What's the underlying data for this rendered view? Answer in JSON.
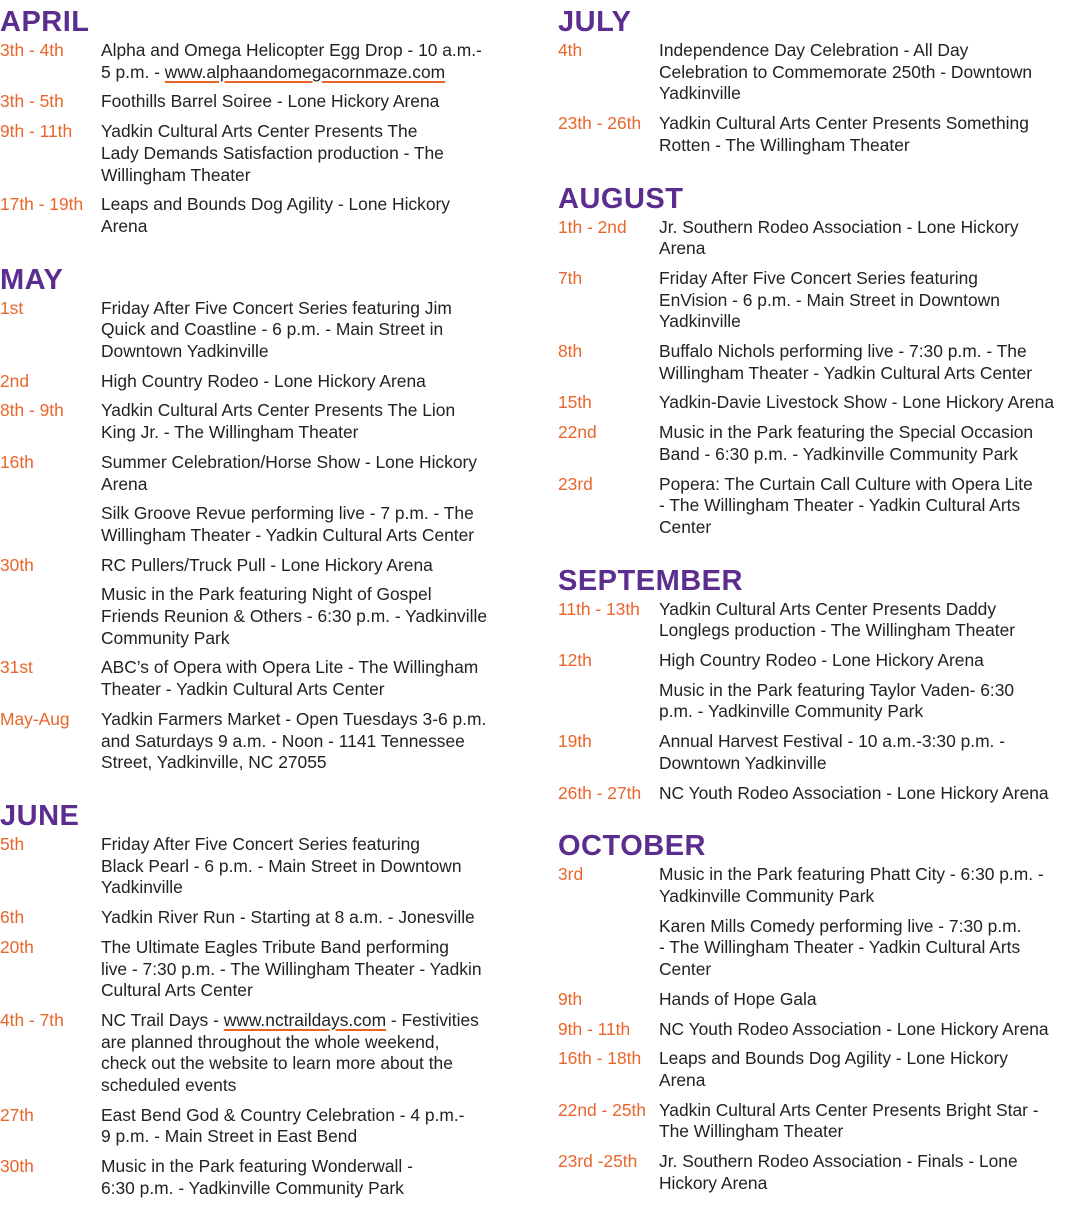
{
  "colors": {
    "month": "#5b2d8e",
    "date": "#e8662b",
    "text": "#222222"
  },
  "left_column": [
    {
      "month": "APRIL",
      "events": [
        {
          "date": "3th - 4th",
          "parts": [
            "Alpha and Omega Helicopter Egg Drop - 10 a.m.-\n5 p.m. - ",
            {
              "link": "www.alphaandomegacornmaze.com"
            }
          ]
        },
        {
          "date": "3th - 5th",
          "parts": [
            "Foothills Barrel Soiree - Lone Hickory Arena"
          ]
        },
        {
          "date": "9th - 11th",
          "parts": [
            "Yadkin Cultural Arts Center Presents The\nLady Demands Satisfaction production - The\nWillingham Theater"
          ]
        },
        {
          "date": "17th - 19th",
          "parts": [
            "Leaps and Bounds Dog Agility - Lone Hickory\nArena"
          ]
        }
      ]
    },
    {
      "month": "MAY",
      "events": [
        {
          "date": "1st",
          "parts": [
            "Friday After Five Concert Series featuring Jim\nQuick and Coastline - 6 p.m. - Main Street in\nDowntown Yadkinville"
          ]
        },
        {
          "date": "2nd",
          "parts": [
            "High Country Rodeo - Lone Hickory Arena"
          ]
        },
        {
          "date": "8th - 9th",
          "parts": [
            "Yadkin Cultural Arts Center Presents The Lion\nKing Jr. - The Willingham Theater"
          ]
        },
        {
          "date": "16th",
          "parts": [
            "Summer Celebration/Horse Show - Lone Hickory\nArena"
          ]
        },
        {
          "date": "",
          "parts": [
            "Silk Groove Revue performing live - 7 p.m. - The\nWillingham Theater - Yadkin Cultural Arts Center"
          ]
        },
        {
          "date": "30th",
          "parts": [
            "RC Pullers/Truck Pull - Lone Hickory Arena"
          ]
        },
        {
          "date": "",
          "parts": [
            "Music in the Park featuring Night of Gospel\nFriends Reunion & Others - 6:30 p.m. - Yadkinville\nCommunity Park"
          ]
        },
        {
          "date": "31st",
          "parts": [
            "ABC’s of Opera with Opera Lite - The Willingham\nTheater - Yadkin Cultural Arts Center"
          ]
        },
        {
          "date": "May-Aug",
          "parts": [
            "Yadkin Farmers Market - Open Tuesdays 3-6 p.m.\nand Saturdays 9 a.m. - Noon - 1141 Tennessee\nStreet, Yadkinville, NC 27055"
          ]
        }
      ]
    },
    {
      "month": "JUNE",
      "events": [
        {
          "date": "5th",
          "parts": [
            "Friday After Five Concert Series featuring\nBlack Pearl - 6 p.m. - Main Street in Downtown\nYadkinville"
          ]
        },
        {
          "date": "6th",
          "parts": [
            "Yadkin River Run - Starting at 8 a.m. - Jonesville"
          ]
        },
        {
          "date": "20th",
          "parts": [
            "The Ultimate Eagles Tribute Band performing\nlive - 7:30 p.m. - The Willingham Theater - Yadkin\nCultural Arts Center"
          ]
        },
        {
          "date": "4th - 7th",
          "parts": [
            "NC Trail Days - ",
            {
              "link": "www.nctraildays.com"
            },
            " - Festivities\nare planned throughout the whole weekend,\ncheck out the website to learn more about the\nscheduled events"
          ]
        },
        {
          "date": "27th",
          "parts": [
            "East Bend God & Country Celebration - 4 p.m.-\n9 p.m. - Main Street in East Bend"
          ]
        },
        {
          "date": "30th",
          "parts": [
            "Music in the Park featuring Wonderwall -\n6:30 p.m. - Yadkinville Community Park"
          ]
        }
      ]
    }
  ],
  "right_column": [
    {
      "month": "JULY",
      "events": [
        {
          "date": "4th",
          "parts": [
            "Independence Day Celebration - All Day\nCelebration to Commemorate 250th - Downtown\nYadkinville"
          ]
        },
        {
          "date": "23th - 26th",
          "parts": [
            "Yadkin Cultural Arts Center Presents Something\nRotten - The Willingham Theater"
          ]
        }
      ]
    },
    {
      "month": "AUGUST",
      "events": [
        {
          "date": "1th - 2nd",
          "parts": [
            "Jr. Southern Rodeo Association - Lone Hickory\nArena"
          ]
        },
        {
          "date": "7th",
          "parts": [
            "Friday After Five Concert Series featuring\nEnVision - 6 p.m. - Main Street in Downtown\nYadkinville"
          ]
        },
        {
          "date": "8th",
          "parts": [
            "Buffalo Nichols performing live - 7:30 p.m. - The\nWillingham Theater - Yadkin Cultural Arts Center"
          ]
        },
        {
          "date": "15th",
          "parts": [
            "Yadkin-Davie Livestock Show - Lone Hickory Arena"
          ]
        },
        {
          "date": "22nd",
          "parts": [
            "Music in the Park featuring the Special Occasion\nBand - 6:30 p.m. - Yadkinville Community Park"
          ]
        },
        {
          "date": "23rd",
          "parts": [
            "Popera: The Curtain Call Culture with Opera Lite\n- The Willingham Theater - Yadkin Cultural Arts\nCenter"
          ]
        }
      ]
    },
    {
      "month": "SEPTEMBER",
      "events": [
        {
          "date": "11th - 13th",
          "parts": [
            "Yadkin Cultural Arts Center Presents Daddy\nLonglegs production - The Willingham Theater"
          ]
        },
        {
          "date": "12th",
          "parts": [
            "High Country Rodeo - Lone Hickory Arena"
          ]
        },
        {
          "date": "",
          "parts": [
            "Music in the Park featuring Taylor Vaden- 6:30\np.m. - Yadkinville Community Park"
          ]
        },
        {
          "date": "19th",
          "parts": [
            "Annual Harvest Festival - 10 a.m.-3:30 p.m. -\nDowntown Yadkinville"
          ]
        },
        {
          "date": "26th - 27th",
          "parts": [
            "NC Youth Rodeo Association - Lone Hickory Arena"
          ]
        }
      ]
    },
    {
      "month": "OCTOBER",
      "events": [
        {
          "date": "3rd",
          "parts": [
            "Music in the Park featuring Phatt City - 6:30 p.m. -\nYadkinville Community Park"
          ]
        },
        {
          "date": "",
          "parts": [
            "Karen Mills Comedy performing live - 7:30 p.m.\n- The Willingham Theater - Yadkin Cultural Arts\nCenter"
          ]
        },
        {
          "date": "9th",
          "parts": [
            "Hands of Hope Gala"
          ]
        },
        {
          "date": "9th - 11th",
          "parts": [
            "NC Youth Rodeo Association - Lone Hickory Arena"
          ]
        },
        {
          "date": "16th - 18th",
          "parts": [
            "Leaps and Bounds Dog Agility - Lone Hickory\nArena"
          ]
        },
        {
          "date": "22nd - 25th",
          "parts": [
            "Yadkin Cultural Arts Center Presents Bright Star -\nThe Willingham Theater"
          ]
        },
        {
          "date": "23rd -25th",
          "parts": [
            "Jr. Southern Rodeo Association - Finals - Lone\nHickory Arena"
          ]
        }
      ]
    }
  ]
}
